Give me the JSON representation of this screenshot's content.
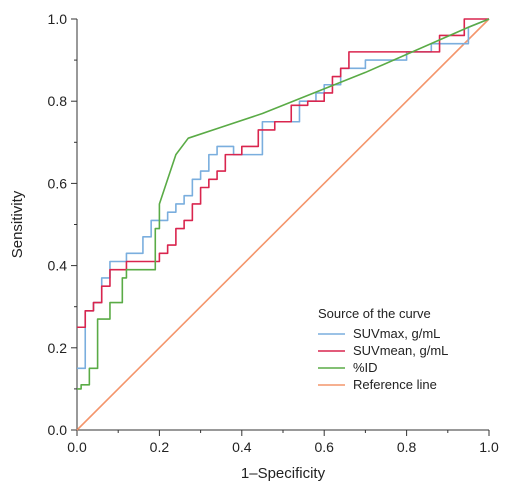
{
  "chart_data": {
    "type": "line",
    "xlabel": "1–Specificity",
    "ylabel": "Sensitivity",
    "xlim": [
      0,
      1
    ],
    "ylim": [
      0,
      1
    ],
    "x_ticks": [
      "0.0",
      "0.2",
      "0.4",
      "0.6",
      "0.8",
      "1.0"
    ],
    "y_ticks": [
      "0.0",
      "0.2",
      "0.4",
      "0.6",
      "0.8",
      "1.0"
    ],
    "grid": false,
    "legend_title": "Source of the curve",
    "legend_position": "bottom-right",
    "series": [
      {
        "name": "SUVmax, g/mL",
        "color": "#7aaede",
        "x": [
          0,
          0.02,
          0.02,
          0.04,
          0.04,
          0.06,
          0.06,
          0.08,
          0.08,
          0.12,
          0.12,
          0.16,
          0.16,
          0.18,
          0.18,
          0.22,
          0.22,
          0.24,
          0.24,
          0.26,
          0.26,
          0.28,
          0.28,
          0.3,
          0.3,
          0.32,
          0.32,
          0.34,
          0.34,
          0.38,
          0.38,
          0.45,
          0.45,
          0.54,
          0.54,
          0.58,
          0.58,
          0.6,
          0.6,
          0.64,
          0.64,
          0.7,
          0.7,
          0.8,
          0.8,
          0.86,
          0.86,
          0.95,
          0.95,
          1.0
        ],
        "y": [
          0.15,
          0.15,
          0.29,
          0.29,
          0.31,
          0.31,
          0.37,
          0.37,
          0.41,
          0.41,
          0.43,
          0.43,
          0.47,
          0.47,
          0.51,
          0.51,
          0.53,
          0.53,
          0.55,
          0.55,
          0.57,
          0.57,
          0.61,
          0.61,
          0.63,
          0.63,
          0.67,
          0.67,
          0.69,
          0.69,
          0.67,
          0.67,
          0.75,
          0.75,
          0.8,
          0.8,
          0.82,
          0.82,
          0.84,
          0.84,
          0.88,
          0.88,
          0.9,
          0.9,
          0.92,
          0.92,
          0.94,
          0.94,
          0.98,
          1.0
        ]
      },
      {
        "name": "SUVmean, g/mL",
        "color": "#d9254e",
        "x": [
          0,
          0.02,
          0.02,
          0.04,
          0.04,
          0.06,
          0.06,
          0.08,
          0.08,
          0.12,
          0.12,
          0.2,
          0.2,
          0.22,
          0.22,
          0.24,
          0.24,
          0.26,
          0.26,
          0.28,
          0.28,
          0.3,
          0.3,
          0.32,
          0.32,
          0.34,
          0.34,
          0.36,
          0.36,
          0.4,
          0.4,
          0.44,
          0.44,
          0.48,
          0.48,
          0.52,
          0.52,
          0.56,
          0.56,
          0.6,
          0.6,
          0.62,
          0.62,
          0.64,
          0.64,
          0.66,
          0.66,
          0.68,
          0.68,
          0.88,
          0.88,
          0.94,
          0.94,
          0.98,
          0.98,
          1.0
        ],
        "y": [
          0.25,
          0.25,
          0.29,
          0.29,
          0.31,
          0.31,
          0.35,
          0.35,
          0.39,
          0.39,
          0.41,
          0.41,
          0.43,
          0.43,
          0.45,
          0.45,
          0.49,
          0.49,
          0.51,
          0.51,
          0.55,
          0.55,
          0.59,
          0.59,
          0.61,
          0.61,
          0.63,
          0.63,
          0.67,
          0.67,
          0.69,
          0.69,
          0.73,
          0.73,
          0.75,
          0.75,
          0.79,
          0.79,
          0.8,
          0.8,
          0.82,
          0.82,
          0.86,
          0.86,
          0.88,
          0.88,
          0.92,
          0.92,
          0.92,
          0.92,
          0.96,
          0.96,
          1.0,
          1.0,
          1.0,
          1.0
        ]
      },
      {
        "name": "%ID",
        "color": "#5aab46",
        "x": [
          0,
          0.01,
          0.01,
          0.03,
          0.03,
          0.05,
          0.05,
          0.08,
          0.08,
          0.11,
          0.11,
          0.12,
          0.12,
          0.19,
          0.19,
          0.2,
          0.2,
          0.22,
          0.24,
          0.27,
          0.45,
          0.7,
          0.95,
          1.0
        ],
        "y": [
          0.1,
          0.1,
          0.11,
          0.11,
          0.15,
          0.15,
          0.27,
          0.27,
          0.31,
          0.31,
          0.37,
          0.37,
          0.39,
          0.39,
          0.49,
          0.49,
          0.55,
          0.61,
          0.67,
          0.71,
          0.77,
          0.87,
          0.98,
          1.0
        ]
      },
      {
        "name": "Reference line",
        "color": "#f4956b",
        "x": [
          0,
          1
        ],
        "y": [
          0,
          1
        ]
      }
    ]
  }
}
